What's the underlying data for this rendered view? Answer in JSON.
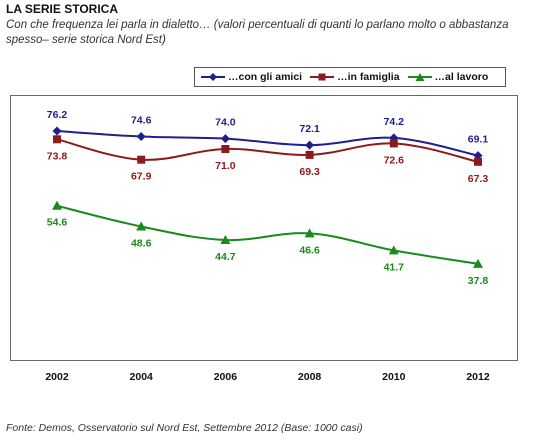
{
  "header": {
    "title": "LA SERIE STORICA",
    "subtitle": "Con che frequenza lei parla in dialetto… (valori percentuali di quanti lo parlano molto o abbastanza spesso– serie storica Nord Est)"
  },
  "footer": {
    "source": "Fonte: Demos, Osservatorio sul Nord Est, Settembre 2012 (Base: 1000 casi)"
  },
  "chart_data": {
    "type": "line",
    "title": "LA SERIE STORICA",
    "subtitle": "Con che frequenza lei parla in dialetto… (valori percentuali di quanti lo parlano molto o abbastanza spesso– serie storica Nord Est)",
    "x": [
      "2002",
      "2004",
      "2006",
      "2008",
      "2010",
      "2012"
    ],
    "ylim": [
      0,
      90
    ],
    "grid": false,
    "legend_position": "top-right",
    "series": [
      {
        "name": "…con gli amici",
        "color": "#1f1f8f",
        "marker": "diamond",
        "values": [
          76.2,
          74.6,
          74.0,
          72.1,
          74.2,
          69.1
        ],
        "labels": [
          "76.2",
          "74.6",
          "74.0",
          "72.1",
          "74.2",
          "69.1"
        ]
      },
      {
        "name": "…in famiglia",
        "color": "#8b1a1a",
        "marker": "square",
        "values": [
          73.8,
          67.9,
          71.0,
          69.3,
          72.6,
          67.3
        ],
        "labels": [
          "73.8",
          "67.9",
          "71.0",
          "69.3",
          "72.6",
          "67.3"
        ]
      },
      {
        "name": "…al lavoro",
        "color": "#1a8a1a",
        "marker": "triangle",
        "values": [
          54.6,
          48.6,
          44.7,
          46.6,
          41.7,
          37.8
        ],
        "labels": [
          "54.6",
          "48.6",
          "44.7",
          "46.6",
          "41.7",
          "37.8"
        ]
      }
    ]
  }
}
